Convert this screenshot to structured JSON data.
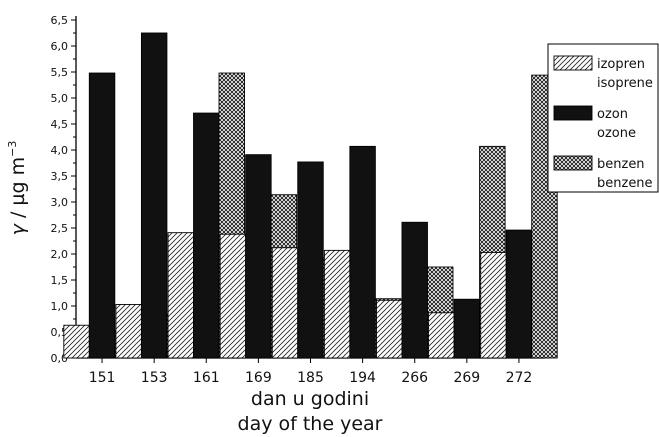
{
  "chart_data": {
    "type": "bar",
    "categories": [
      "151",
      "153",
      "161",
      "169",
      "185",
      "194",
      "266",
      "269",
      "272"
    ],
    "series": [
      {
        "name": "izopren",
        "name2": "isoprene",
        "pattern": "hatch",
        "values": [
          0.63,
          1.03,
          2.41,
          2.38,
          2.12,
          2.07,
          1.11,
          0.87,
          2.03
        ]
      },
      {
        "name": "ozon",
        "name2": "ozone",
        "pattern": "solid",
        "values": [
          5.48,
          6.25,
          4.71,
          3.91,
          3.77,
          4.07,
          2.61,
          1.13,
          2.46
        ]
      },
      {
        "name": "benzen",
        "name2": "benzene",
        "pattern": "crosshatch",
        "values": [
          0.53,
          0.84,
          5.48,
          3.14,
          1.93,
          1.14,
          1.75,
          4.07,
          5.44
        ]
      }
    ],
    "ylim": [
      0,
      6.5
    ],
    "yticks": [
      "0,0",
      "0,5",
      "1,0",
      "1,5",
      "2,0",
      "2,5",
      "3,0",
      "3,5",
      "4,0",
      "4,5",
      "5,0",
      "5,5",
      "6,0",
      "6,5"
    ],
    "ylabel_symbol": "γ",
    "ylabel_unit": " / µg m",
    "ylabel_exp": "−3",
    "xlabel_line1": "dan u godini",
    "xlabel_line2": "day of the year",
    "legend_position": "right",
    "grid": false
  }
}
